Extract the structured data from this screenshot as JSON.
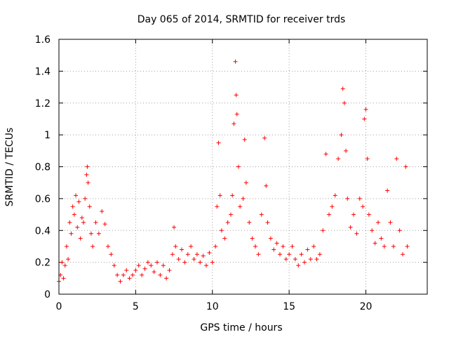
{
  "chart_data": {
    "type": "scatter",
    "title": "Day 065 of 2014, SRMTID for receiver trds",
    "xlabel": "GPS time / hours",
    "ylabel": "SRMTID / TECUs",
    "xlim": [
      0,
      24
    ],
    "ylim": [
      0,
      1.6
    ],
    "xticks": [
      0,
      5,
      10,
      15,
      20
    ],
    "xtick_labels": [
      "0",
      "5",
      "10",
      "15",
      "20"
    ],
    "yticks": [
      0,
      0.2,
      0.4,
      0.6,
      0.8,
      1,
      1.2,
      1.4,
      1.6
    ],
    "ytick_labels": [
      "0",
      "0.2",
      "0.4",
      "0.6",
      "0.8",
      "1",
      "1.2",
      "1.4",
      "1.6"
    ],
    "grid": true,
    "marker": "+",
    "color": "#ff0000",
    "series": [
      {
        "name": "SRMTID",
        "points": [
          [
            0.0,
            0.08
          ],
          [
            0.1,
            0.12
          ],
          [
            0.2,
            0.2
          ],
          [
            0.3,
            0.1
          ],
          [
            0.4,
            0.18
          ],
          [
            0.5,
            0.3
          ],
          [
            0.6,
            0.22
          ],
          [
            0.7,
            0.45
          ],
          [
            0.8,
            0.38
          ],
          [
            0.9,
            0.55
          ],
          [
            1.0,
            0.5
          ],
          [
            1.1,
            0.62
          ],
          [
            1.2,
            0.42
          ],
          [
            1.3,
            0.58
          ],
          [
            1.4,
            0.35
          ],
          [
            1.5,
            0.48
          ],
          [
            1.6,
            0.45
          ],
          [
            1.7,
            0.6
          ],
          [
            1.8,
            0.75
          ],
          [
            1.85,
            0.8
          ],
          [
            1.9,
            0.7
          ],
          [
            2.0,
            0.55
          ],
          [
            2.1,
            0.38
          ],
          [
            2.2,
            0.3
          ],
          [
            2.4,
            0.45
          ],
          [
            2.6,
            0.38
          ],
          [
            2.8,
            0.52
          ],
          [
            3.0,
            0.44
          ],
          [
            3.2,
            0.3
          ],
          [
            3.4,
            0.25
          ],
          [
            3.6,
            0.18
          ],
          [
            3.8,
            0.12
          ],
          [
            4.0,
            0.08
          ],
          [
            4.2,
            0.12
          ],
          [
            4.4,
            0.15
          ],
          [
            4.6,
            0.1
          ],
          [
            4.8,
            0.12
          ],
          [
            5.0,
            0.15
          ],
          [
            5.2,
            0.18
          ],
          [
            5.4,
            0.12
          ],
          [
            5.6,
            0.16
          ],
          [
            5.8,
            0.2
          ],
          [
            6.0,
            0.18
          ],
          [
            6.2,
            0.14
          ],
          [
            6.4,
            0.2
          ],
          [
            6.6,
            0.12
          ],
          [
            6.8,
            0.18
          ],
          [
            7.0,
            0.1
          ],
          [
            7.2,
            0.15
          ],
          [
            7.4,
            0.25
          ],
          [
            7.5,
            0.42
          ],
          [
            7.6,
            0.3
          ],
          [
            7.8,
            0.22
          ],
          [
            8.0,
            0.28
          ],
          [
            8.2,
            0.2
          ],
          [
            8.4,
            0.25
          ],
          [
            8.6,
            0.3
          ],
          [
            8.8,
            0.22
          ],
          [
            9.0,
            0.25
          ],
          [
            9.2,
            0.2
          ],
          [
            9.4,
            0.24
          ],
          [
            9.6,
            0.18
          ],
          [
            9.8,
            0.26
          ],
          [
            10.0,
            0.2
          ],
          [
            10.2,
            0.3
          ],
          [
            10.3,
            0.55
          ],
          [
            10.4,
            0.95
          ],
          [
            10.5,
            0.62
          ],
          [
            10.6,
            0.4
          ],
          [
            10.8,
            0.35
          ],
          [
            11.0,
            0.45
          ],
          [
            11.2,
            0.5
          ],
          [
            11.3,
            0.62
          ],
          [
            11.4,
            1.07
          ],
          [
            11.5,
            1.46
          ],
          [
            11.55,
            1.25
          ],
          [
            11.6,
            1.13
          ],
          [
            11.7,
            0.8
          ],
          [
            11.8,
            0.55
          ],
          [
            12.0,
            0.6
          ],
          [
            12.1,
            0.97
          ],
          [
            12.2,
            0.7
          ],
          [
            12.4,
            0.45
          ],
          [
            12.6,
            0.35
          ],
          [
            12.8,
            0.3
          ],
          [
            13.0,
            0.25
          ],
          [
            13.2,
            0.5
          ],
          [
            13.4,
            0.98
          ],
          [
            13.5,
            0.68
          ],
          [
            13.6,
            0.45
          ],
          [
            13.8,
            0.35
          ],
          [
            14.0,
            0.28
          ],
          [
            14.2,
            0.32
          ],
          [
            14.4,
            0.25
          ],
          [
            14.6,
            0.3
          ],
          [
            14.8,
            0.22
          ],
          [
            15.0,
            0.25
          ],
          [
            15.2,
            0.3
          ],
          [
            15.4,
            0.22
          ],
          [
            15.6,
            0.18
          ],
          [
            15.8,
            0.25
          ],
          [
            16.0,
            0.2
          ],
          [
            16.2,
            0.28
          ],
          [
            16.4,
            0.22
          ],
          [
            16.6,
            0.3
          ],
          [
            16.8,
            0.22
          ],
          [
            17.0,
            0.25
          ],
          [
            17.2,
            0.4
          ],
          [
            17.4,
            0.88
          ],
          [
            17.6,
            0.5
          ],
          [
            17.8,
            0.55
          ],
          [
            18.0,
            0.62
          ],
          [
            18.2,
            0.85
          ],
          [
            18.4,
            1.0
          ],
          [
            18.5,
            1.29
          ],
          [
            18.6,
            1.2
          ],
          [
            18.7,
            0.9
          ],
          [
            18.8,
            0.6
          ],
          [
            19.0,
            0.42
          ],
          [
            19.2,
            0.5
          ],
          [
            19.4,
            0.38
          ],
          [
            19.6,
            0.6
          ],
          [
            19.8,
            0.55
          ],
          [
            19.9,
            1.1
          ],
          [
            20.0,
            1.16
          ],
          [
            20.1,
            0.85
          ],
          [
            20.2,
            0.5
          ],
          [
            20.4,
            0.4
          ],
          [
            20.6,
            0.32
          ],
          [
            20.8,
            0.45
          ],
          [
            21.0,
            0.35
          ],
          [
            21.2,
            0.3
          ],
          [
            21.4,
            0.65
          ],
          [
            21.6,
            0.45
          ],
          [
            21.8,
            0.3
          ],
          [
            22.0,
            0.85
          ],
          [
            22.2,
            0.4
          ],
          [
            22.4,
            0.25
          ],
          [
            22.6,
            0.8
          ],
          [
            22.7,
            0.3
          ]
        ]
      }
    ]
  }
}
